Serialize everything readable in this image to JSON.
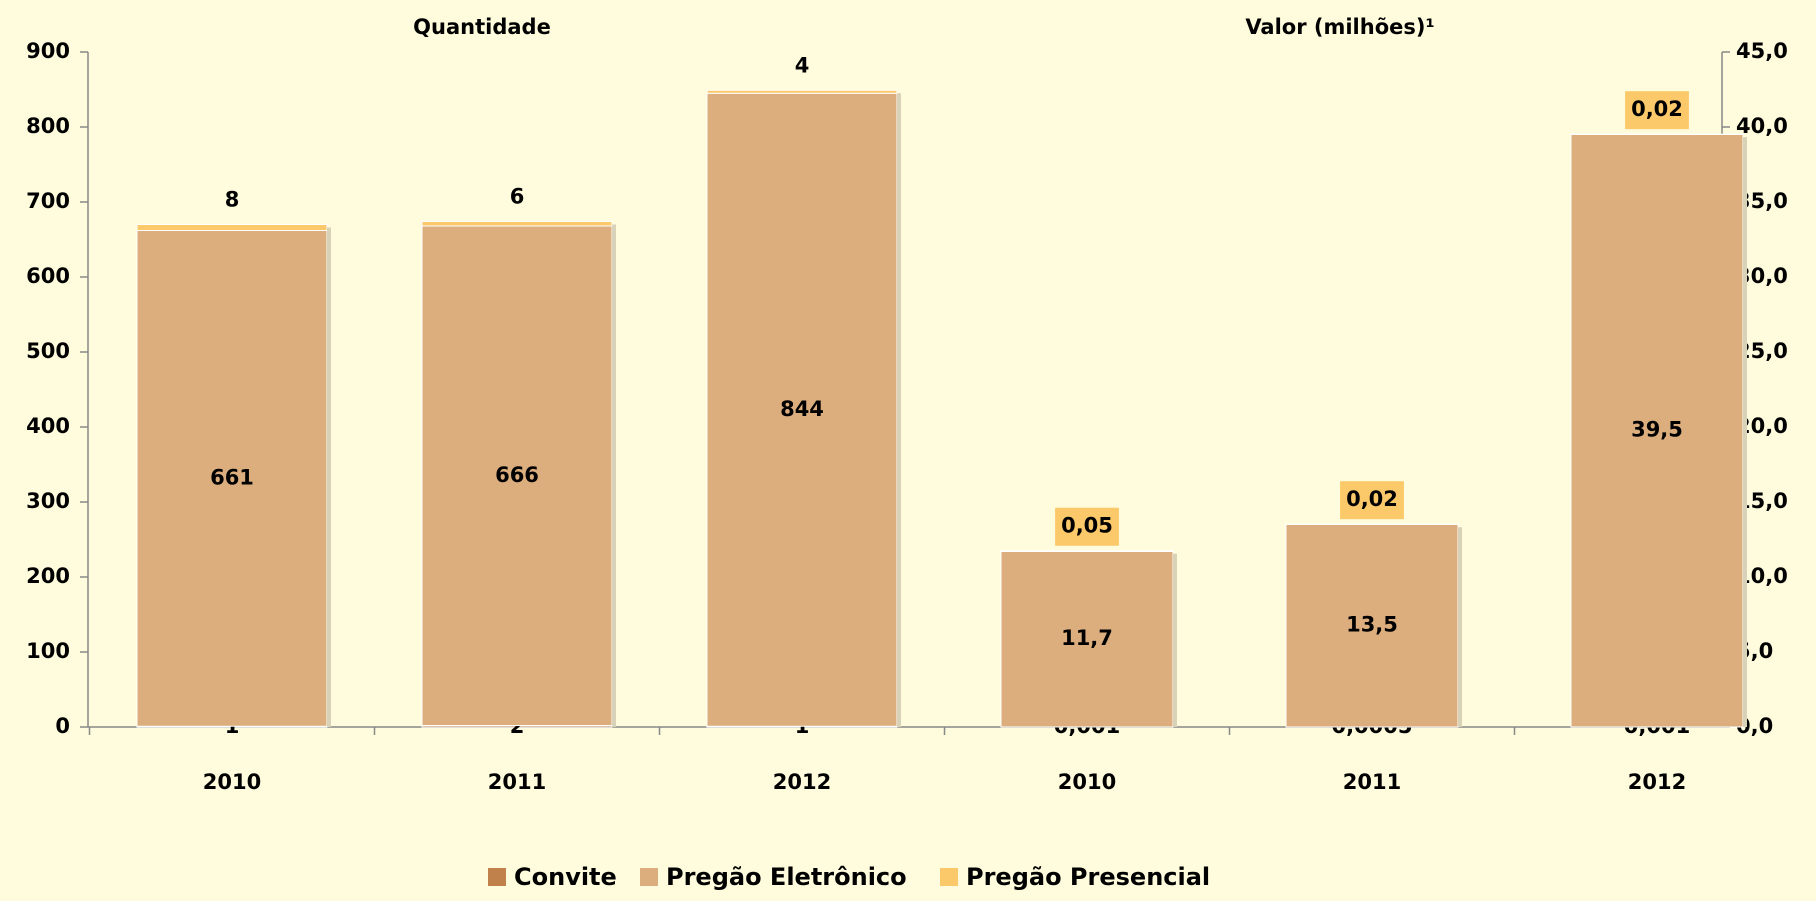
{
  "chart_data": [
    {
      "type": "bar",
      "title": "Quantidade",
      "categories": [
        "2010",
        "2011",
        "2012"
      ],
      "series": [
        {
          "name": "Convite",
          "color": "#c0814b",
          "values": [
            1,
            2,
            1
          ]
        },
        {
          "name": "Pregão Eletrônico",
          "color": "#dcae7e",
          "values": [
            661,
            666,
            844
          ]
        },
        {
          "name": "Pregão Presencial",
          "color": "#fcc96a",
          "values": [
            8,
            6,
            4
          ]
        }
      ],
      "ylim": [
        0,
        900
      ],
      "yticks": [
        0,
        100,
        200,
        300,
        400,
        500,
        600,
        700,
        800,
        900
      ],
      "stacked": true,
      "legend": "bottom"
    },
    {
      "type": "bar",
      "title": "Valor (milhões)¹",
      "categories": [
        "2010",
        "2011",
        "2012"
      ],
      "series": [
        {
          "axis": "y2",
          "values": [
            0.001,
            0.0005,
            0.001
          ],
          "value_labels": [
            "0,001",
            "0,0005",
            "0,001"
          ]
        },
        {
          "axis": "y2",
          "values": [
            11.7,
            13.5,
            39.5
          ],
          "value_labels": [
            "11,7",
            "13,5",
            "39,5"
          ]
        },
        {
          "axis": "y2",
          "values": [
            0.05,
            0.02,
            0.02
          ],
          "value_labels": [
            "0,05",
            "0,02",
            "0,02"
          ]
        }
      ],
      "y2lim": [
        0,
        45
      ],
      "y2ticks": [
        {
          "value": 0,
          "label": "0,0"
        },
        {
          "value": 5,
          "label": "5,0"
        },
        {
          "value": 10,
          "label": "10,0"
        },
        {
          "value": 15,
          "label": "15,0"
        },
        {
          "value": 20,
          "label": "20,0"
        },
        {
          "value": 25,
          "label": "25,0"
        },
        {
          "value": 30,
          "label": "30,0"
        },
        {
          "value": 35,
          "label": "35,0"
        },
        {
          "value": 40,
          "label": "40,0"
        },
        {
          "value": 45,
          "label": "45,0"
        }
      ],
      "stacked": true
    }
  ]
}
